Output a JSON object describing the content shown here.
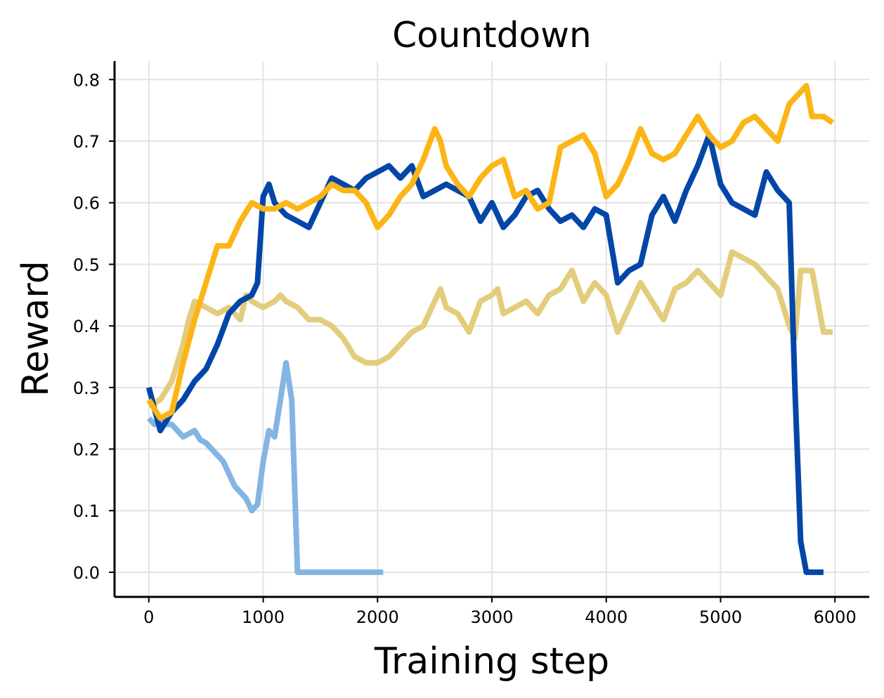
{
  "chart_data": {
    "type": "line",
    "title": "Countdown",
    "xlabel": "Training step",
    "ylabel": "Reward",
    "xlim": [
      -300,
      6300
    ],
    "ylim": [
      -0.04,
      0.83
    ],
    "xticks": [
      0,
      1000,
      2000,
      3000,
      4000,
      5000,
      6000
    ],
    "yticks": [
      0.0,
      0.1,
      0.2,
      0.3,
      0.4,
      0.5,
      0.6,
      0.7,
      0.8
    ],
    "grid": true,
    "legend": "none",
    "series": [
      {
        "color": "#e3cd7c",
        "x": [
          0,
          100,
          200,
          300,
          350,
          400,
          500,
          600,
          700,
          800,
          850,
          900,
          1000,
          1100,
          1150,
          1200,
          1300,
          1400,
          1500,
          1600,
          1700,
          1800,
          1900,
          2000,
          2100,
          2200,
          2300,
          2400,
          2500,
          2550,
          2600,
          2700,
          2800,
          2900,
          3000,
          3050,
          3100,
          3200,
          3300,
          3400,
          3500,
          3600,
          3700,
          3800,
          3900,
          4000,
          4100,
          4200,
          4300,
          4400,
          4500,
          4600,
          4700,
          4800,
          4900,
          5000,
          5100,
          5200,
          5300,
          5400,
          5500,
          5600,
          5650,
          5700,
          5800,
          5900,
          5980
        ],
        "values": [
          0.27,
          0.28,
          0.31,
          0.37,
          0.41,
          0.44,
          0.43,
          0.42,
          0.43,
          0.41,
          0.45,
          0.44,
          0.43,
          0.44,
          0.45,
          0.44,
          0.43,
          0.41,
          0.41,
          0.4,
          0.38,
          0.35,
          0.34,
          0.34,
          0.35,
          0.37,
          0.39,
          0.4,
          0.44,
          0.46,
          0.43,
          0.42,
          0.39,
          0.44,
          0.45,
          0.46,
          0.42,
          0.43,
          0.44,
          0.42,
          0.45,
          0.46,
          0.49,
          0.44,
          0.47,
          0.45,
          0.39,
          0.43,
          0.47,
          0.44,
          0.41,
          0.46,
          0.47,
          0.49,
          0.47,
          0.45,
          0.52,
          0.51,
          0.5,
          0.48,
          0.46,
          0.4,
          0.38,
          0.49,
          0.49,
          0.39,
          0.39
        ]
      },
      {
        "color": "#84b4e2",
        "x": [
          0,
          50,
          100,
          150,
          200,
          250,
          300,
          350,
          400,
          450,
          500,
          550,
          600,
          650,
          700,
          750,
          800,
          850,
          900,
          950,
          1000,
          1050,
          1100,
          1150,
          1200,
          1250,
          1300,
          1350,
          1400,
          1500,
          1600,
          1700,
          1800,
          1900,
          2000,
          2050
        ],
        "values": [
          0.25,
          0.24,
          0.245,
          0.24,
          0.24,
          0.23,
          0.22,
          0.225,
          0.23,
          0.215,
          0.21,
          0.2,
          0.19,
          0.18,
          0.16,
          0.14,
          0.13,
          0.12,
          0.1,
          0.11,
          0.18,
          0.23,
          0.22,
          0.28,
          0.34,
          0.28,
          0.0,
          0.0,
          0.0,
          0.0,
          0.0,
          0.0,
          0.0,
          0.0,
          0.0,
          0.0
        ]
      },
      {
        "color": "#0446a8",
        "x": [
          0,
          100,
          200,
          300,
          400,
          500,
          600,
          700,
          800,
          900,
          950,
          1000,
          1050,
          1100,
          1150,
          1200,
          1300,
          1400,
          1500,
          1600,
          1700,
          1800,
          1900,
          2000,
          2100,
          2200,
          2300,
          2400,
          2500,
          2600,
          2700,
          2800,
          2900,
          3000,
          3100,
          3200,
          3300,
          3400,
          3500,
          3600,
          3700,
          3800,
          3900,
          4000,
          4100,
          4200,
          4300,
          4400,
          4500,
          4600,
          4700,
          4800,
          4900,
          5000,
          5100,
          5200,
          5300,
          5400,
          5500,
          5600,
          5650,
          5700,
          5750,
          5800,
          5900
        ],
        "values": [
          0.3,
          0.23,
          0.26,
          0.28,
          0.31,
          0.33,
          0.37,
          0.42,
          0.44,
          0.45,
          0.47,
          0.61,
          0.63,
          0.6,
          0.59,
          0.58,
          0.57,
          0.56,
          0.6,
          0.64,
          0.63,
          0.62,
          0.64,
          0.65,
          0.66,
          0.64,
          0.66,
          0.61,
          0.62,
          0.63,
          0.62,
          0.61,
          0.57,
          0.6,
          0.56,
          0.58,
          0.61,
          0.62,
          0.59,
          0.57,
          0.58,
          0.56,
          0.59,
          0.58,
          0.47,
          0.49,
          0.5,
          0.58,
          0.61,
          0.57,
          0.62,
          0.66,
          0.71,
          0.63,
          0.6,
          0.59,
          0.58,
          0.65,
          0.62,
          0.6,
          0.3,
          0.05,
          0.0,
          0.0,
          0.0
        ]
      },
      {
        "color": "#fcb516",
        "x": [
          0,
          100,
          200,
          300,
          400,
          500,
          600,
          700,
          800,
          900,
          1000,
          1100,
          1200,
          1300,
          1400,
          1500,
          1600,
          1700,
          1800,
          1900,
          2000,
          2100,
          2200,
          2300,
          2400,
          2500,
          2550,
          2600,
          2700,
          2800,
          2900,
          3000,
          3100,
          3200,
          3300,
          3400,
          3500,
          3600,
          3700,
          3800,
          3900,
          4000,
          4100,
          4200,
          4300,
          4400,
          4500,
          4600,
          4700,
          4800,
          4900,
          5000,
          5100,
          5200,
          5300,
          5400,
          5500,
          5600,
          5700,
          5750,
          5800,
          5900,
          5980
        ],
        "values": [
          0.28,
          0.25,
          0.26,
          0.34,
          0.41,
          0.47,
          0.53,
          0.53,
          0.57,
          0.6,
          0.59,
          0.59,
          0.6,
          0.59,
          0.6,
          0.61,
          0.63,
          0.62,
          0.62,
          0.6,
          0.56,
          0.58,
          0.61,
          0.63,
          0.67,
          0.72,
          0.7,
          0.66,
          0.63,
          0.61,
          0.64,
          0.66,
          0.67,
          0.61,
          0.62,
          0.59,
          0.6,
          0.69,
          0.7,
          0.71,
          0.68,
          0.61,
          0.63,
          0.67,
          0.72,
          0.68,
          0.67,
          0.68,
          0.71,
          0.74,
          0.71,
          0.69,
          0.7,
          0.73,
          0.74,
          0.72,
          0.7,
          0.76,
          0.78,
          0.79,
          0.74,
          0.74,
          0.73
        ]
      }
    ]
  }
}
